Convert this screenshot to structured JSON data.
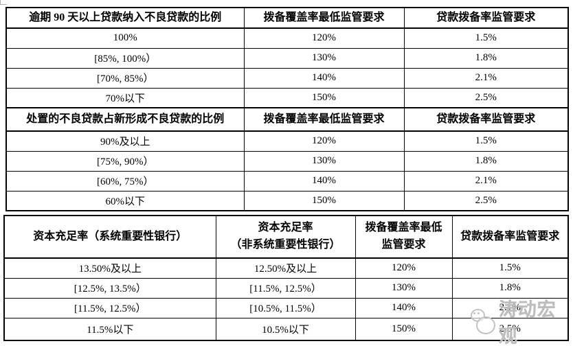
{
  "colors": {
    "border": "#000000",
    "text": "#000000",
    "watermark": "#bdbdbd"
  },
  "watermark": {
    "name": "涛动宏观"
  },
  "tables": [
    {
      "name": "npl-recognition-disposal-table",
      "sections": [
        {
          "header": [
            "逾期 90 天以上贷款纳入不良贷款的比例",
            "拨备覆盖率最低监管要求",
            "贷款拨备率监管要求"
          ],
          "rows": [
            [
              "100%",
              "120%",
              "1.5%"
            ],
            [
              "[85%, 100%）",
              "130%",
              "1.8%"
            ],
            [
              "[70%, 85%）",
              "140%",
              "2.1%"
            ],
            [
              "70%以下",
              "150%",
              "2.5%"
            ]
          ]
        },
        {
          "header": [
            "处置的不良贷款占新形成不良贷款的比例",
            "拨备覆盖率最低监管要求",
            "贷款拨备率监管要求"
          ],
          "rows": [
            [
              "90%及以上",
              "120%",
              "1.5%"
            ],
            [
              "[75%, 90%）",
              "130%",
              "1.8%"
            ],
            [
              "[60%, 75%）",
              "140%",
              "2.1%"
            ],
            [
              "60%以下",
              "150%",
              "2.5%"
            ]
          ]
        }
      ]
    },
    {
      "name": "capital-adequacy-table",
      "sections": [
        {
          "header": [
            "资本充足率（系统重要性银行）",
            [
              "资本充足率",
              "（非系统重要性银行）"
            ],
            [
              "拨备覆盖率最低",
              "监管要求"
            ],
            "贷款拨备率监管要求"
          ],
          "rows": [
            [
              "13.50%及以上",
              "12.50%及以上",
              "120%",
              "1.5%"
            ],
            [
              "[12.5%, 13.5%）",
              "[11.5%, 12.5%）",
              "130%",
              "1.8%"
            ],
            [
              "[11.5%, 12.5%）",
              "[10.5%, 11.5%）",
              "140%",
              "2.1%"
            ],
            [
              "11.5%以下",
              "10.5%以下",
              "150%",
              "2.5%"
            ]
          ]
        }
      ]
    }
  ]
}
